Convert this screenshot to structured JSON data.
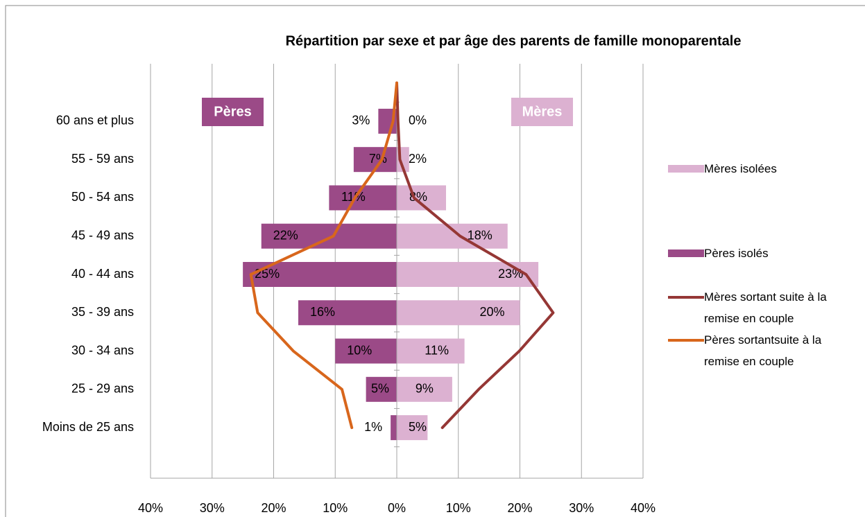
{
  "chart_data": {
    "type": "bar",
    "title": "Répartition par sexe et par âge des parents de famille monoparentale",
    "annotations": [
      "Pères",
      "Mères"
    ],
    "categories": [
      null,
      "Moins de 25 ans",
      "25 - 29 ans",
      "30 - 34 ans",
      "35 - 39 ans",
      "40 - 44 ans",
      "45 - 49 ans",
      "50 - 54 ans",
      "55 - 59 ans",
      "60 ans et plus",
      null
    ],
    "series": [
      {
        "name": "Mères isolées",
        "type": "bar",
        "color": "#dcb1d1",
        "values": [
          null,
          5,
          9,
          11,
          20,
          23,
          18,
          8,
          2,
          0,
          null
        ],
        "value_labels": [
          null,
          "5%",
          "9%",
          "11%",
          "20%",
          "23%",
          "18%",
          "8%",
          "2%",
          "0%",
          null
        ]
      },
      {
        "name": "Pères isolés",
        "type": "bar",
        "color": "#9b4a87",
        "values": [
          null,
          -1,
          -5,
          -10,
          -16,
          -25,
          -22,
          -11,
          -7,
          -3,
          null
        ],
        "value_labels": [
          null,
          "1%",
          "5%",
          "10%",
          "16%",
          "25%",
          "22%",
          "11%",
          "7%",
          "3%",
          null
        ]
      },
      {
        "name": "Mères sortant suite à la remise en couple",
        "type": "line",
        "color": "#953735",
        "values": [
          null,
          7.4,
          13.3,
          19.9,
          25.4,
          21,
          10.3,
          2.8,
          0.5,
          0.2,
          0
        ]
      },
      {
        "name": "Pères sortantsuite à la remise en couple",
        "type": "line",
        "color": "#d8661c",
        "values": [
          null,
          -7.3,
          -8.9,
          -16.8,
          -22.6,
          -23.7,
          -10.3,
          -6.8,
          -2.4,
          -0.6,
          0
        ]
      }
    ],
    "xlim": [
      -40,
      40
    ],
    "xticks": [
      {
        "value": -40,
        "label": "40%"
      },
      {
        "value": -30,
        "label": "30%"
      },
      {
        "value": -20,
        "label": "20%"
      },
      {
        "value": -10,
        "label": "10%"
      },
      {
        "value": 0,
        "label": "0%"
      },
      {
        "value": 10,
        "label": "10%"
      },
      {
        "value": 20,
        "label": "20%"
      },
      {
        "value": 30,
        "label": "30%"
      },
      {
        "value": 40,
        "label": "40%"
      }
    ],
    "grid": true
  }
}
